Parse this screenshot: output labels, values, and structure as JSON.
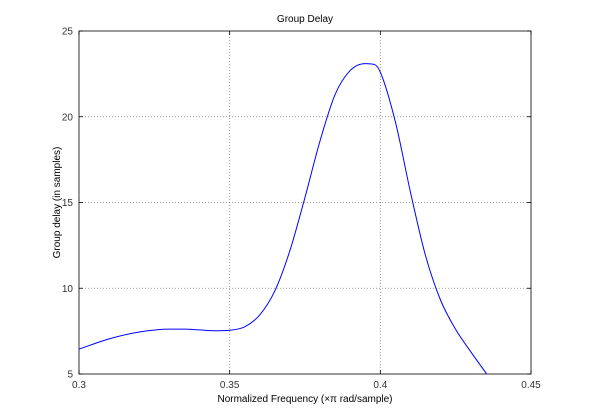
{
  "chart_data": {
    "type": "line",
    "title": "Group Delay",
    "xlabel": "Normalized Frequency (×π rad/sample)",
    "ylabel": "Group delay (in samples)",
    "xlim": [
      0.3,
      0.45
    ],
    "ylim": [
      5,
      25
    ],
    "xticks": [
      "0.3",
      "0.35",
      "0.4",
      "0.45"
    ],
    "yticks": [
      "5",
      "10",
      "15",
      "20",
      "25"
    ],
    "grid": true,
    "grid_style": "dotted",
    "series_color": "#0000ff",
    "series": [
      {
        "x": [
          0.3,
          0.31,
          0.32,
          0.33,
          0.335,
          0.34,
          0.345,
          0.35,
          0.355,
          0.36,
          0.365,
          0.37,
          0.375,
          0.38,
          0.385,
          0.39,
          0.395,
          0.398,
          0.4,
          0.405,
          0.41,
          0.415,
          0.42,
          0.425,
          0.43,
          0.4353
        ],
        "y": [
          6.45,
          7.05,
          7.45,
          7.62,
          7.62,
          7.57,
          7.52,
          7.55,
          7.75,
          8.45,
          9.85,
          12.2,
          15.3,
          18.6,
          21.3,
          22.7,
          23.1,
          23.05,
          22.6,
          19.7,
          15.6,
          11.9,
          9.3,
          7.6,
          6.3,
          5.0
        ]
      }
    ]
  }
}
